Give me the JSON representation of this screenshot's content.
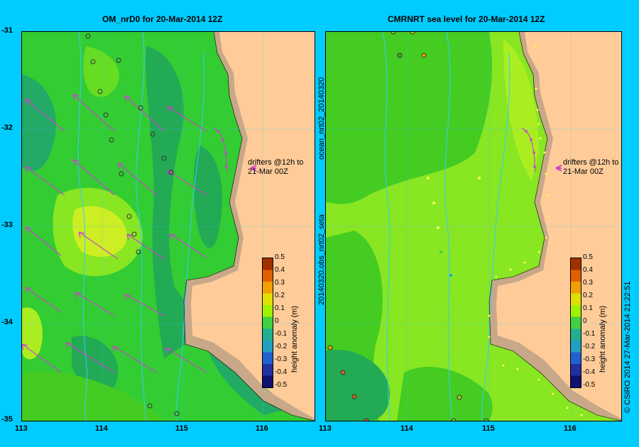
{
  "panels": [
    {
      "title": "OM_nrD0 for 20-Mar-2014 12Z",
      "drifter_label_line1": "drifters @12h to",
      "drifter_label_line2": "21-Mar 00Z",
      "colorbar_label": "height anomaly (m)"
    },
    {
      "title": "CMRNRT sea level  for 20-Mar-2014 12Z",
      "drifter_label_line1": "drifters @12h to",
      "drifter_label_line2": "21-Mar 00Z",
      "colorbar_label": "height anomaly (m)"
    }
  ],
  "lat_ticks": [
    "-31",
    "-32",
    "-33",
    "-34",
    "-35"
  ],
  "lon_ticks": [
    "113",
    "114",
    "115",
    "116"
  ],
  "colorbar_ticks": [
    "0.5",
    "0.4",
    "0.3",
    "0.2",
    "0.1",
    "0",
    "-0.1",
    "-0.2",
    "-0.3",
    "-0.4",
    "-0.5"
  ],
  "colorbar_colors": [
    "#a03000",
    "#e06000",
    "#f0a000",
    "#e0e000",
    "#a0f000",
    "#40d040",
    "#20b090",
    "#20a0c0",
    "#2060d0",
    "#2030a0",
    "#101070"
  ],
  "side_label_top": "ocean_nrt02_20140320",
  "side_label_bottom": "20140320.obs_nrt02_seta",
  "credit": "© CSIRO 2014   27-Mar-2014 21:22:51",
  "colors": {
    "land": "#ffcc99",
    "shelf": "#c8a888",
    "current_arrow": "#cc44cc",
    "contour": "#33ccff"
  }
}
